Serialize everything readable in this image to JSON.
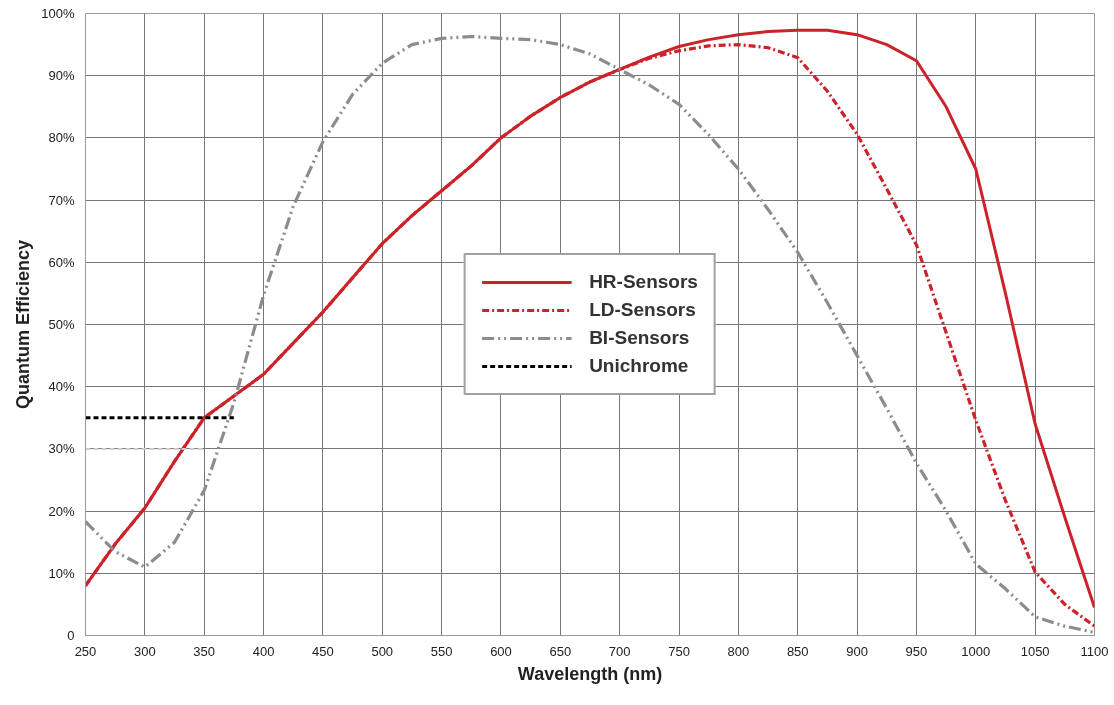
{
  "chart_data": {
    "type": "line",
    "xlabel": "Wavelength (nm)",
    "ylabel": "Quantum Efficiency",
    "xlim": [
      250,
      1100
    ],
    "ylim": [
      0,
      100
    ],
    "xticks": [
      250,
      300,
      350,
      400,
      450,
      500,
      550,
      600,
      650,
      700,
      750,
      800,
      850,
      900,
      950,
      1000,
      1050,
      1100
    ],
    "yticks": [
      0,
      {
        "value": 10,
        "label": "10%"
      },
      {
        "value": 20,
        "label": "20%"
      },
      {
        "value": 30,
        "label": "30%"
      },
      {
        "value": 40,
        "label": "40%"
      },
      {
        "value": 50,
        "label": "50%"
      },
      {
        "value": 60,
        "label": "60%"
      },
      {
        "value": 70,
        "label": "70%"
      },
      {
        "value": 80,
        "label": "80%"
      },
      {
        "value": 90,
        "label": "90%"
      },
      {
        "value": 100,
        "label": "100%"
      }
    ],
    "grid": true,
    "legend": "center",
    "marker": "none",
    "x": [
      250,
      275,
      300,
      325,
      350,
      375,
      400,
      425,
      450,
      475,
      500,
      525,
      550,
      575,
      600,
      625,
      650,
      675,
      700,
      725,
      750,
      775,
      800,
      825,
      850,
      875,
      900,
      925,
      950,
      975,
      1000,
      1025,
      1050,
      1075,
      1100
    ],
    "series": [
      {
        "name": "HR-Sensors",
        "color": "#cc2229",
        "line_style": "solid",
        "values": [
          8,
          14.7,
          20.5,
          28,
          35,
          38.5,
          42,
          47,
          52,
          57.5,
          63,
          67.5,
          71.5,
          75.5,
          80,
          83.5,
          86.5,
          89,
          91,
          93,
          94.7,
          95.8,
          96.6,
          97.1,
          97.3,
          97.3,
          96.6,
          95,
          92.4,
          85,
          75,
          55,
          34,
          19,
          4.5
        ]
      },
      {
        "name": "LD-Sensors",
        "color": "#cc2229",
        "line_style": "dashdot",
        "values": [
          8,
          14.7,
          20.5,
          28,
          35,
          38.5,
          42,
          47,
          52,
          57.5,
          63,
          67.5,
          71.5,
          75.5,
          80,
          83.5,
          86.5,
          89,
          91,
          92.8,
          94,
          94.8,
          95,
          94.5,
          92.9,
          87.5,
          80.6,
          71.8,
          62.8,
          48.7,
          34.6,
          21.7,
          10.2,
          5,
          1.5
        ]
      },
      {
        "name": "BI-Sensors",
        "color": "#8c8c8c",
        "line_style": "dashdotdot",
        "values": [
          18.3,
          13.5,
          11,
          15,
          23.3,
          37.4,
          54.7,
          69,
          79.4,
          87,
          92,
          95,
          96,
          96.3,
          96,
          95.8,
          95,
          93.5,
          91,
          88.5,
          85.4,
          80.5,
          75,
          68.5,
          61.6,
          53.5,
          45,
          36.5,
          27.7,
          20,
          11.5,
          7.5,
          3,
          1.5,
          0.5
        ]
      },
      {
        "name": "Unichrome",
        "color": "#000000",
        "line_style": "dashed",
        "x": [
          250,
          375
        ],
        "values": [
          35,
          35
        ]
      },
      {
        "color": "#cccccc",
        "line_style": "dashed",
        "x": [
          250,
          350
        ],
        "values": [
          30,
          30
        ]
      }
    ]
  }
}
